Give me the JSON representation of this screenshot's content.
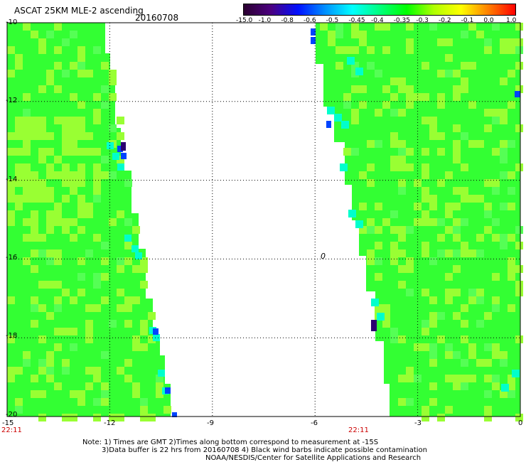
{
  "header": {
    "title": "ASCAT 25KM MLE-2 ascending",
    "date": "20160708"
  },
  "colorbar": {
    "stops": [
      "#2b0030",
      "#4b0080",
      "#0010ff",
      "#0090ff",
      "#00ffff",
      "#00ff7f",
      "#00ff00",
      "#b0ff00",
      "#ffff00",
      "#ff8000",
      "#ff0000"
    ],
    "labels": [
      "-15.0",
      "-1.0",
      "-0.8",
      "-0.6",
      "-0.5",
      "-0.45",
      "-0.4",
      "-0.35",
      "-0.3",
      "-0.2",
      "-0.1",
      "0.0",
      "1.0"
    ]
  },
  "axes": {
    "y_labels": [
      "-10",
      "-12",
      "-14",
      "-16",
      "-18",
      "-20"
    ],
    "x_labels": [
      "-15",
      "-12",
      "-9",
      "-6",
      "-3",
      "0"
    ],
    "lat_range": [
      -20,
      -10
    ],
    "lon_range": [
      -15,
      0
    ]
  },
  "times": {
    "left": "22:11",
    "right": "22:11"
  },
  "notes": {
    "line1": "Note: 1) Times are GMT 2)Times along bottom correspond to measurement at -15S",
    "line2": "3)Data buffer is 22 hrs from 20160708 4) Black wind barbs indicate possible contamination",
    "line3": "NOAA/NESDIS/Center for Satellite Applications and Research"
  },
  "map": {
    "island_label": "0"
  },
  "colors": {
    "background": "#ffffff",
    "swath_main": "#33ff33",
    "swath_light": "#99ff33",
    "swath_cyan": "#00ffcc",
    "swath_blue": "#0044ff",
    "swath_dark": "#2b0070"
  }
}
